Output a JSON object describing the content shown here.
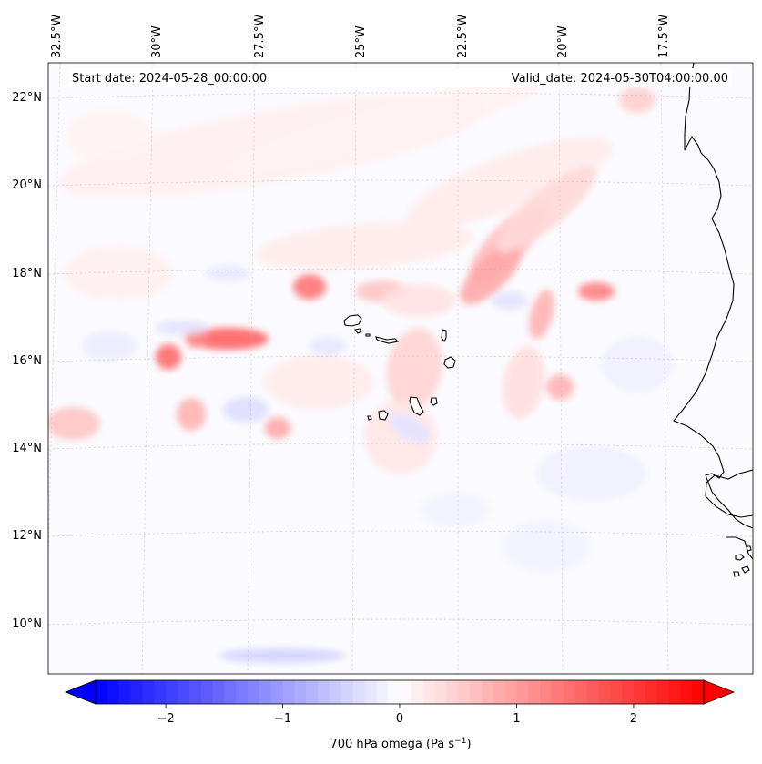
{
  "map": {
    "region": "Eastern tropical Atlantic — Cape Verde Islands and West African coast",
    "start_date_label": "Start date: 2024-05-28_00:00:00",
    "valid_date_label": "Valid_date: 2024-05-30T04:00:00.00",
    "longitude_labels": [
      "32.5°W",
      "30°W",
      "27.5°W",
      "25°W",
      "22.5°W",
      "20°W",
      "17.5°W"
    ],
    "latitude_labels": [
      "22°N",
      "20°N",
      "18°N",
      "16°N",
      "14°N",
      "12°N",
      "10°N"
    ],
    "field": "700 hPa omega",
    "gridlines": true,
    "coastlines": true,
    "colors": {
      "negative": "#0000ff",
      "zero": "#ffffff",
      "positive": "#ff0000"
    }
  },
  "colorbar": {
    "label_prefix": "700 hPa omega (Pa s",
    "label_exponent": "−1",
    "label_suffix": ")",
    "tick_values": [
      -2,
      -1,
      0,
      1,
      2
    ],
    "tick_labels": [
      "−2",
      "−1",
      "0",
      "1",
      "2"
    ],
    "range": [
      -2.6,
      2.6
    ],
    "levels": 52,
    "extend": "both",
    "cmap": "bwr"
  }
}
